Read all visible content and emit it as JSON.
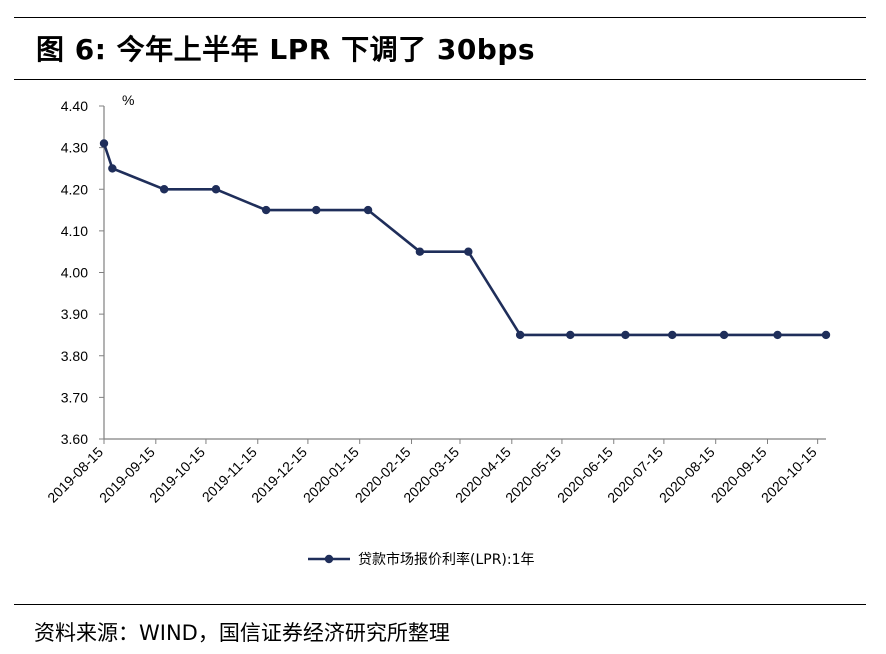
{
  "figure": {
    "title": "图 6:  今年上半年 LPR 下调了 30bps",
    "source": "资料来源：WIND，国信证券经济研究所整理"
  },
  "chart_data": {
    "type": "line",
    "unit_label": "%",
    "ylim": [
      3.6,
      4.4
    ],
    "y_ticks": [
      "4.40",
      "4.30",
      "4.20",
      "4.10",
      "4.00",
      "3.90",
      "3.80",
      "3.70",
      "3.60"
    ],
    "x_ticks": [
      "2019-08-15",
      "2019-09-15",
      "2019-10-15",
      "2019-11-15",
      "2019-12-15",
      "2020-01-15",
      "2020-02-15",
      "2020-03-15",
      "2020-04-15",
      "2020-05-15",
      "2020-06-15",
      "2020-07-15",
      "2020-08-15",
      "2020-09-15",
      "2020-10-15"
    ],
    "x_range": [
      "2019-08-15",
      "2020-10-20"
    ],
    "grid": false,
    "legend_position": "bottom",
    "series": [
      {
        "name": "贷款市场报价利率(LPR):1年",
        "color": "#1f2e5a",
        "points": [
          {
            "x": "2019-08-15",
            "y": 4.31
          },
          {
            "x": "2019-08-20",
            "y": 4.25
          },
          {
            "x": "2019-09-20",
            "y": 4.2
          },
          {
            "x": "2019-10-21",
            "y": 4.2
          },
          {
            "x": "2019-11-20",
            "y": 4.15
          },
          {
            "x": "2019-12-20",
            "y": 4.15
          },
          {
            "x": "2020-01-20",
            "y": 4.15
          },
          {
            "x": "2020-02-20",
            "y": 4.05
          },
          {
            "x": "2020-03-20",
            "y": 4.05
          },
          {
            "x": "2020-04-20",
            "y": 3.85
          },
          {
            "x": "2020-05-20",
            "y": 3.85
          },
          {
            "x": "2020-06-22",
            "y": 3.85
          },
          {
            "x": "2020-07-20",
            "y": 3.85
          },
          {
            "x": "2020-08-20",
            "y": 3.85
          },
          {
            "x": "2020-09-21",
            "y": 3.85
          },
          {
            "x": "2020-10-20",
            "y": 3.85
          }
        ]
      }
    ]
  }
}
